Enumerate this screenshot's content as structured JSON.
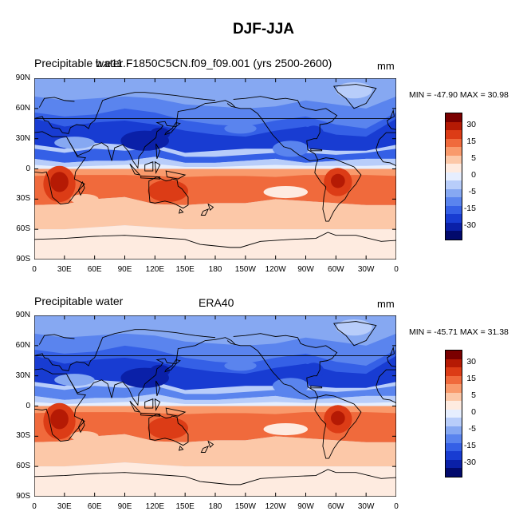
{
  "title": "DJF-JJA",
  "panels": [
    {
      "left_title": "Precipitable water",
      "center_title": "b.e11.F1850C5CN.f09_f09.001 (yrs 2500-2600)",
      "units": "mm",
      "min_max": "MIN = -47.90 MAX =  30.98",
      "field_variant": "model"
    },
    {
      "left_title": "Precipitable water",
      "center_title": "ERA40",
      "units": "mm",
      "min_max": "MIN = -45.71 MAX =  31.38",
      "field_variant": "obs"
    }
  ],
  "y_ticks": [
    "90N",
    "60N",
    "30N",
    "0",
    "30S",
    "60S",
    "90S"
  ],
  "x_ticks": [
    "0",
    "30E",
    "60E",
    "90E",
    "120E",
    "150E",
    "180",
    "150W",
    "120W",
    "90W",
    "60W",
    "30W",
    "0"
  ],
  "colorbar": {
    "labels": [
      "30",
      "15",
      "5",
      "0",
      "-5",
      "-15",
      "-30"
    ],
    "colors": [
      "#7a0000",
      "#b51a04",
      "#dc3c16",
      "#f06a3c",
      "#f99a6c",
      "#fcc8a8",
      "#feebe0",
      "#e6eefe",
      "#b8cdfa",
      "#86a8f2",
      "#5a84ee",
      "#3560e6",
      "#183cd2",
      "#0a20a8",
      "#020a6c"
    ]
  }
}
